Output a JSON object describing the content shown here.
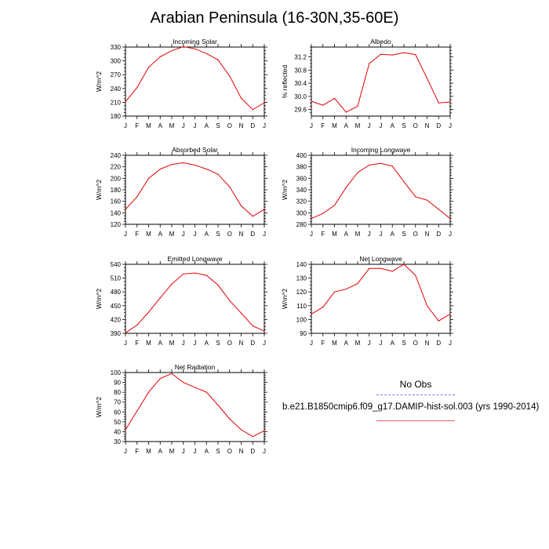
{
  "page_title": "Arabian Peninsula (16-30N,35-60E)",
  "legend": {
    "obs_label": "No Obs",
    "case_label": "b.e21.B1850cmip6.f09_g17.DAMIP-hist-sol.003 (yrs 1990-2014)",
    "obs_color": "#7a7aff",
    "case_color": "#e00000"
  },
  "chart_data": [
    {
      "type": "line",
      "title": "Incoming Solar",
      "ylabel": "W/m^2",
      "categories": [
        "J",
        "F",
        "M",
        "A",
        "M",
        "J",
        "J",
        "A",
        "S",
        "O",
        "N",
        "D",
        "J"
      ],
      "ylim": [
        180,
        330
      ],
      "yticks": [
        "180",
        "210",
        "240",
        "270",
        "300",
        "330"
      ],
      "series": [
        {
          "values": [
            211,
            242,
            286,
            309,
            322,
            331,
            326,
            316,
            302,
            267,
            219,
            194,
            209
          ]
        }
      ]
    },
    {
      "type": "line",
      "title": "Albedo",
      "ylabel": "% reflected",
      "categories": [
        "J",
        "F",
        "M",
        "A",
        "M",
        "J",
        "J",
        "A",
        "S",
        "O",
        "N",
        "D",
        "J"
      ],
      "ylim": [
        29.4,
        31.5
      ],
      "yticks": [
        "29.6",
        "30.0",
        "30.4",
        "30.8",
        "31.2"
      ],
      "series": [
        {
          "values": [
            29.85,
            29.73,
            29.94,
            29.52,
            29.7,
            31.0,
            31.28,
            31.26,
            31.33,
            31.27,
            30.55,
            29.8,
            29.83
          ]
        }
      ]
    },
    {
      "type": "line",
      "title": "Absorbed Solar",
      "ylabel": "W/m^2",
      "categories": [
        "J",
        "F",
        "M",
        "A",
        "M",
        "J",
        "J",
        "A",
        "S",
        "O",
        "N",
        "D",
        "J"
      ],
      "ylim": [
        120,
        240
      ],
      "yticks": [
        "120",
        "140",
        "160",
        "180",
        "200",
        "220",
        "240"
      ],
      "series": [
        {
          "values": [
            146,
            168,
            200,
            216,
            224,
            227,
            223,
            216,
            207,
            185,
            152,
            134,
            146
          ]
        }
      ]
    },
    {
      "type": "line",
      "title": "Incoming Longwave",
      "ylabel": "W/m^2",
      "categories": [
        "J",
        "F",
        "M",
        "A",
        "M",
        "J",
        "J",
        "A",
        "S",
        "O",
        "N",
        "D",
        "J"
      ],
      "ylim": [
        280,
        400
      ],
      "yticks": [
        "280",
        "300",
        "320",
        "340",
        "360",
        "380",
        "400"
      ],
      "series": [
        {
          "values": [
            290,
            299,
            313,
            344,
            370,
            383,
            386,
            381,
            354,
            328,
            322,
            306,
            290
          ]
        }
      ]
    },
    {
      "type": "line",
      "title": "Emitted Longwave",
      "ylabel": "W/m^2",
      "categories": [
        "J",
        "F",
        "M",
        "A",
        "M",
        "J",
        "J",
        "A",
        "S",
        "O",
        "N",
        "D",
        "J"
      ],
      "ylim": [
        390,
        540
      ],
      "yticks": [
        "390",
        "420",
        "450",
        "480",
        "510",
        "540"
      ],
      "series": [
        {
          "values": [
            391,
            408,
            436,
            467,
            497,
            519,
            521,
            516,
            495,
            461,
            434,
            406,
            395
          ]
        }
      ]
    },
    {
      "type": "line",
      "title": "Net Longwave",
      "ylabel": "W/m^2",
      "categories": [
        "J",
        "F",
        "M",
        "A",
        "M",
        "J",
        "J",
        "A",
        "S",
        "O",
        "N",
        "D",
        "J"
      ],
      "ylim": [
        90,
        140
      ],
      "yticks": [
        "90",
        "100",
        "110",
        "120",
        "130",
        "140"
      ],
      "series": [
        {
          "values": [
            104,
            109,
            120,
            122,
            126,
            137,
            137,
            135,
            140,
            132,
            110,
            99,
            104
          ]
        }
      ]
    },
    {
      "type": "line",
      "title": "Net Radiation",
      "ylabel": "W/m^2",
      "categories": [
        "J",
        "F",
        "M",
        "A",
        "M",
        "J",
        "J",
        "A",
        "S",
        "O",
        "N",
        "D",
        "J"
      ],
      "ylim": [
        30,
        100
      ],
      "yticks": [
        "30",
        "40",
        "50",
        "60",
        "70",
        "80",
        "90",
        "100"
      ],
      "series": [
        {
          "values": [
            42,
            61,
            80,
            94,
            99,
            90,
            85,
            80,
            67,
            53,
            42,
            35,
            41
          ]
        }
      ]
    }
  ]
}
